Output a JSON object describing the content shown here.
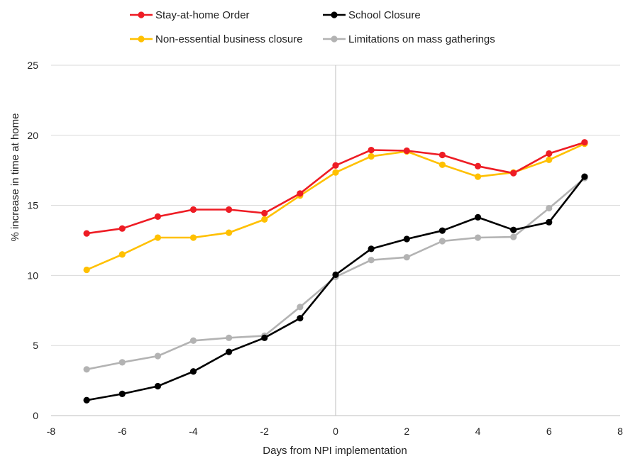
{
  "chart_data": {
    "type": "line",
    "title": "",
    "xlabel": "Days from NPI implementation",
    "ylabel": "%  increase in time at home",
    "xlim": [
      -8,
      8
    ],
    "ylim": [
      0,
      25
    ],
    "x_ticks": [
      "-8",
      "-6",
      "-4",
      "-2",
      "0",
      "2",
      "4",
      "6",
      "8"
    ],
    "y_ticks": [
      "0",
      "5",
      "10",
      "15",
      "20",
      "25"
    ],
    "grid": "horizontal",
    "reference_line_x": 0,
    "legend_position": "top",
    "x": [
      -7,
      -6,
      -5,
      -4,
      -3,
      -2,
      -1,
      0,
      1,
      2,
      3,
      4,
      5,
      6,
      7
    ],
    "series": [
      {
        "name": "Stay-at-home Order",
        "color": "#ee1c24",
        "values": [
          13.0,
          13.35,
          14.2,
          14.7,
          14.7,
          14.45,
          15.85,
          17.85,
          18.95,
          18.9,
          18.6,
          17.8,
          17.3,
          18.7,
          19.5
        ]
      },
      {
        "name": "School Closure",
        "color": "#000000",
        "values": [
          1.1,
          1.55,
          2.1,
          3.15,
          4.55,
          5.55,
          6.95,
          10.05,
          11.9,
          12.6,
          13.2,
          14.15,
          13.25,
          13.8,
          17.05
        ]
      },
      {
        "name": "Non-essential business closure",
        "color": "#ffc000",
        "values": [
          10.4,
          11.5,
          12.7,
          12.7,
          13.05,
          14.0,
          15.7,
          17.35,
          18.5,
          18.85,
          17.9,
          17.05,
          17.35,
          18.25,
          19.4
        ]
      },
      {
        "name": "Limitations on mass gatherings",
        "color": "#b3b3b3",
        "values": [
          3.3,
          3.8,
          4.25,
          5.35,
          5.55,
          5.7,
          7.75,
          9.9,
          11.1,
          11.3,
          12.45,
          12.7,
          12.75,
          14.8,
          16.95
        ]
      }
    ]
  }
}
